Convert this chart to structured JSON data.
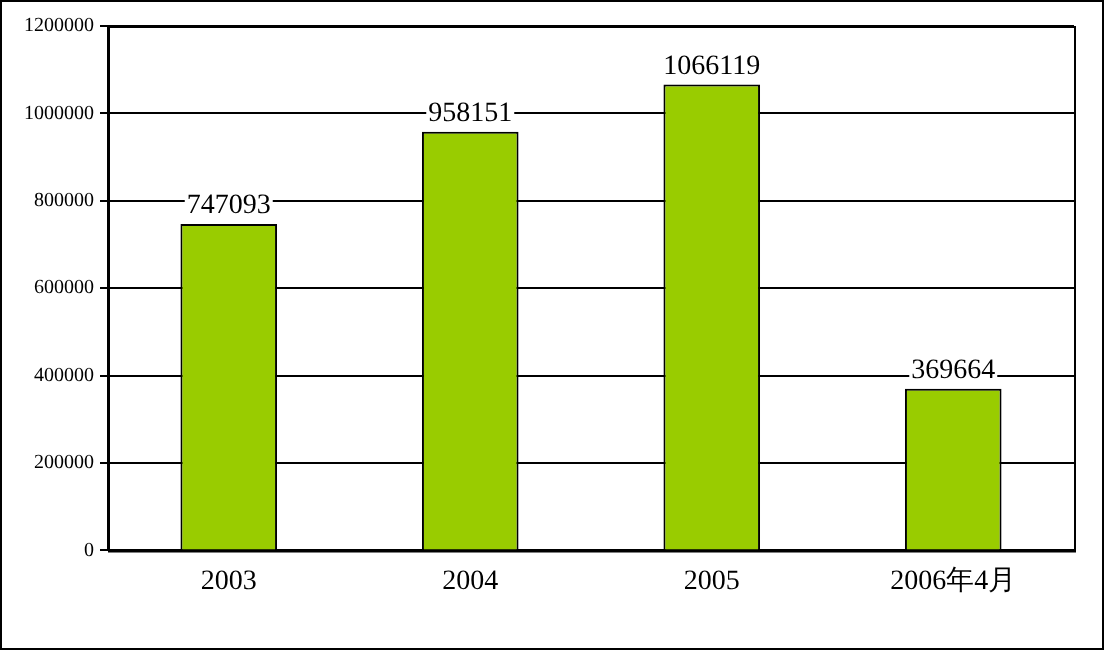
{
  "chart_data": {
    "type": "bar",
    "categories": [
      "2003",
      "2004",
      "2005",
      "2006年4月"
    ],
    "values": [
      747093,
      958151,
      1066119,
      369664
    ],
    "color": "#99cc00",
    "ylim": [
      0,
      1200000
    ],
    "yticks": [
      0,
      200000,
      400000,
      600000,
      800000,
      1000000,
      1200000
    ],
    "grid": "y",
    "data_labels": true,
    "legend": false
  }
}
